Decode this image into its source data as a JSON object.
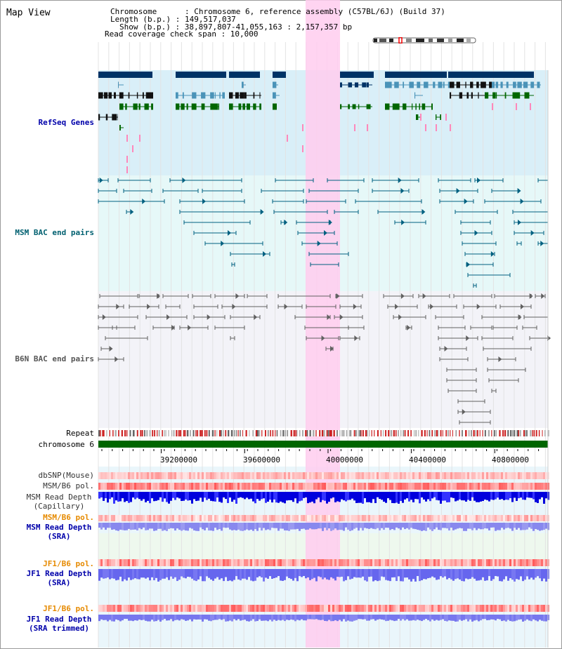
{
  "app": {
    "title": "Map View"
  },
  "info": {
    "chromosome": "Chromosome      : Chromosome 6, reference assembly (C57BL/6J) (Build 37)",
    "length": "Length (b.p.) : 149,517,037",
    "show": "Show (b.p.) : 38,897,807-41,055,163 : 2,157,357 bp",
    "coverage": "Read coverage check span : 10,000"
  },
  "tracks": {
    "refseq": "RefSeq Genes",
    "msm_bac": "MSM BAC end pairs",
    "b6n_bac": "B6N BAC end pairs",
    "repeat": "Repeat",
    "chromosome": "chromosome 6",
    "dbsnp": "dbSNP(Mouse)",
    "msm_pol_1": "MSM/B6 pol.",
    "msm_depth_cap_1": "MSM Read Depth",
    "msm_depth_cap_2": "(Capillary)",
    "msm_pol_2": "MSM/B6 pol.",
    "msm_depth_sra_1": "MSM Read Depth",
    "msm_depth_sra_2": "(SRA)",
    "jf1_pol_1": "JF1/B6 pol.",
    "jf1_depth_sra_1": "JF1 Read Depth",
    "jf1_depth_sra_2": "(SRA)",
    "jf1_pol_2": "JF1/B6 pol.",
    "jf1_depth_trim_1": "JF1 Read Depth",
    "jf1_depth_trim_2": "(SRA trimmed)"
  },
  "axis": {
    "ticks": [
      {
        "value": 39200000,
        "label": "39200000"
      },
      {
        "value": 39600000,
        "label": "39600000"
      },
      {
        "value": 40000000,
        "label": "40000000"
      },
      {
        "value": 40400000,
        "label": "40400000"
      },
      {
        "value": 40800000,
        "label": "40800000"
      }
    ]
  },
  "colors": {
    "refseq_dark": "#003366",
    "refseq_mid": "#4a93b8",
    "refseq_green": "#006600",
    "msm_bac": "#006080",
    "b6n_bac": "#606060",
    "highlight": "#ffccee",
    "chrom_bar": "#006600",
    "label_blue": "#0000aa",
    "label_orange": "#e68a00",
    "label_teal": "#006070"
  }
}
